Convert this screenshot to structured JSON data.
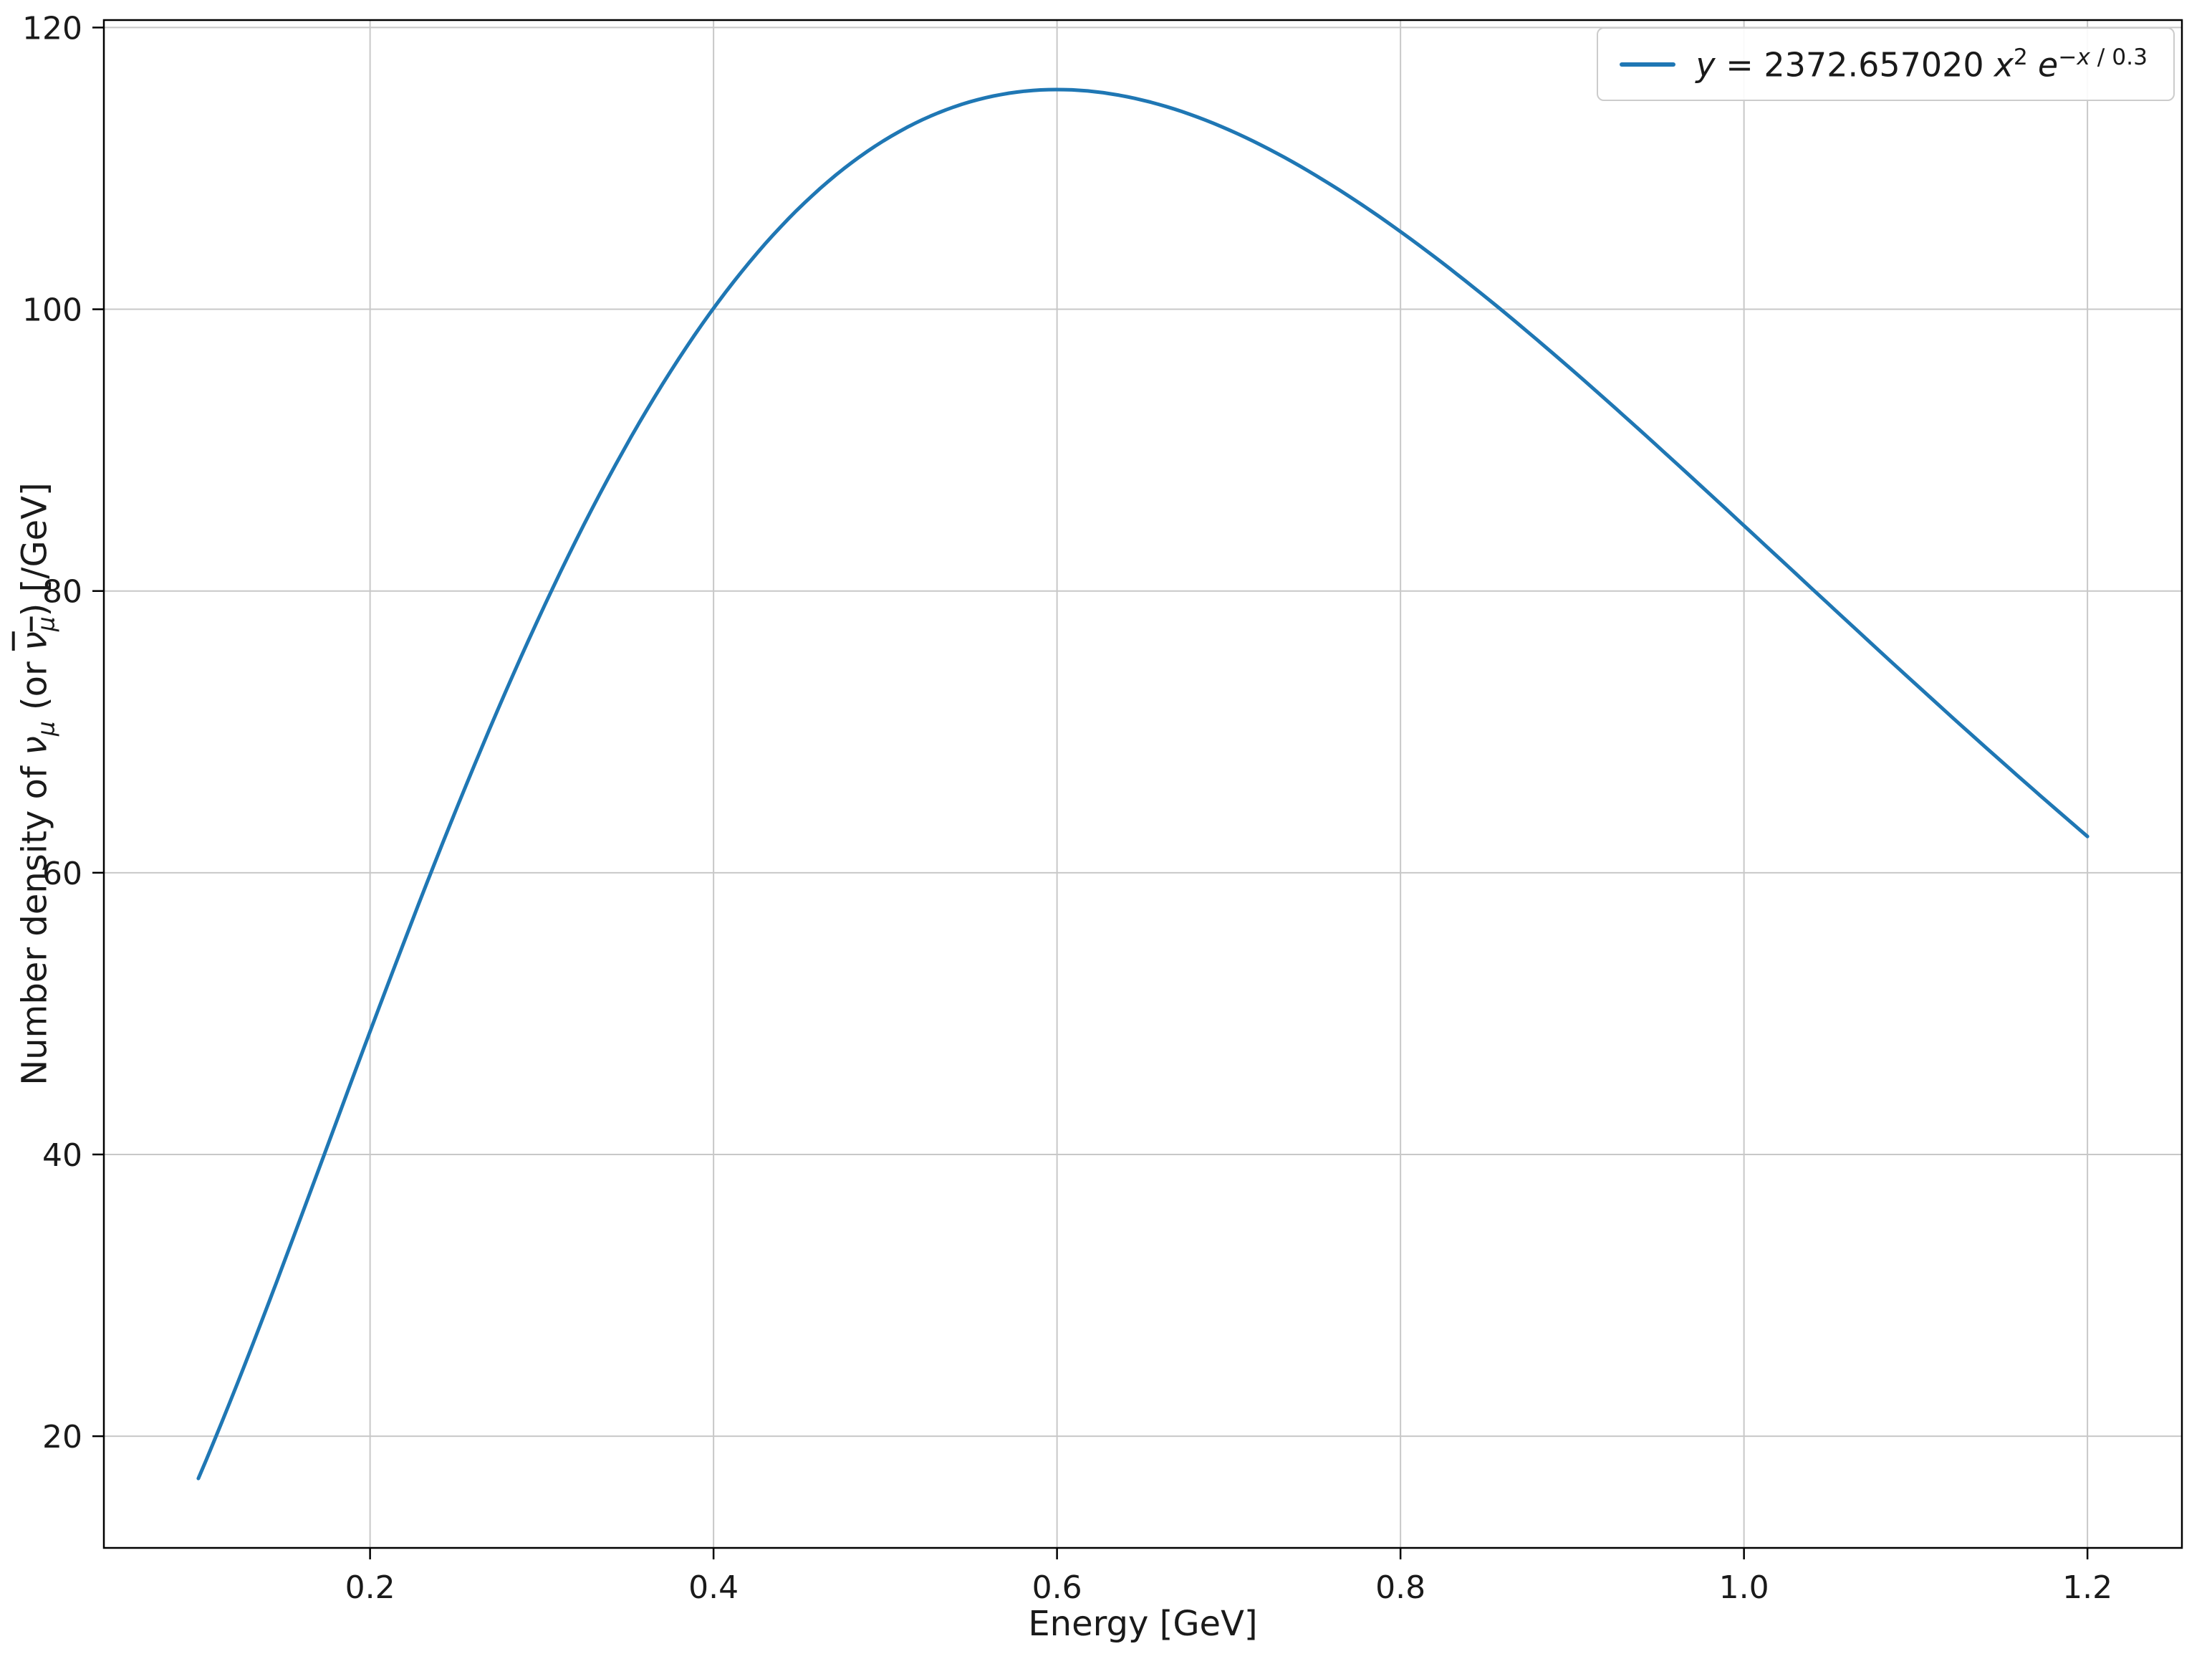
{
  "colors": {
    "background": "#ffffff",
    "line": "#1f77b4",
    "grid": "#c8c8c8",
    "axes_frame": "#000000",
    "text": "#1a1a1a",
    "legend_border": "#cccccc"
  },
  "chart_data": {
    "type": "line",
    "title": "",
    "xlabel": "Energy [GeV]",
    "ylabel_plain": "Number density of νμ (or ν̄μ) [/GeV]",
    "ylabel_parts": {
      "prefix": "Number density of ",
      "nu": "ν",
      "mu_sub": "μ",
      "or_text": " (or ",
      "nu_bar": "ν",
      "mu_bar_sub": "μ",
      "suffix": ") [/GeV]"
    },
    "legend": {
      "position": "upper right",
      "label_plain": "y = 2372.657020 x^2 e^(−x / 0.3)",
      "label_parts": {
        "lhs": "y",
        "equals": " = ",
        "coefficient": "2372.657020",
        "x_var": "x",
        "x_exponent": "2",
        "e_var": "e",
        "exp_minus": "−",
        "exp_x": "x",
        "exp_rest": " / 0.3"
      }
    },
    "grid": true,
    "line_color": "#1f77b4",
    "xlim": [
      0.045,
      1.255
    ],
    "ylim": [
      12.07,
      120.53
    ],
    "xticks": [
      0.2,
      0.4,
      0.6,
      0.8,
      1.0,
      1.2
    ],
    "xtick_labels": [
      "0.2",
      "0.4",
      "0.6",
      "0.8",
      "1.0",
      "1.2"
    ],
    "yticks": [
      20,
      40,
      60,
      80,
      100,
      120
    ],
    "ytick_labels": [
      "20",
      "40",
      "60",
      "80",
      "100",
      "120"
    ],
    "function_params": {
      "formula": "y = amplitude * x^2 * exp(-x / tau)",
      "amplitude": 2372.65702,
      "tau": 0.3,
      "x_range": [
        0.1,
        1.2
      ]
    },
    "x": [
      0.1,
      0.15,
      0.2,
      0.25,
      0.3,
      0.35,
      0.4,
      0.45,
      0.5,
      0.55,
      0.6,
      0.65,
      0.7,
      0.75,
      0.8,
      0.85,
      0.9,
      0.95,
      1.0,
      1.05,
      1.1,
      1.15,
      1.2
    ],
    "y": [
      17.0,
      32.38,
      48.73,
      64.45,
      78.56,
      90.51,
      100.07,
      107.21,
      112.03,
      114.75,
      115.6,
      114.84,
      112.74,
      109.55,
      105.52,
      100.83,
      95.68,
      90.24,
      84.64,
      78.99,
      73.39,
      67.9,
      62.58
    ]
  }
}
